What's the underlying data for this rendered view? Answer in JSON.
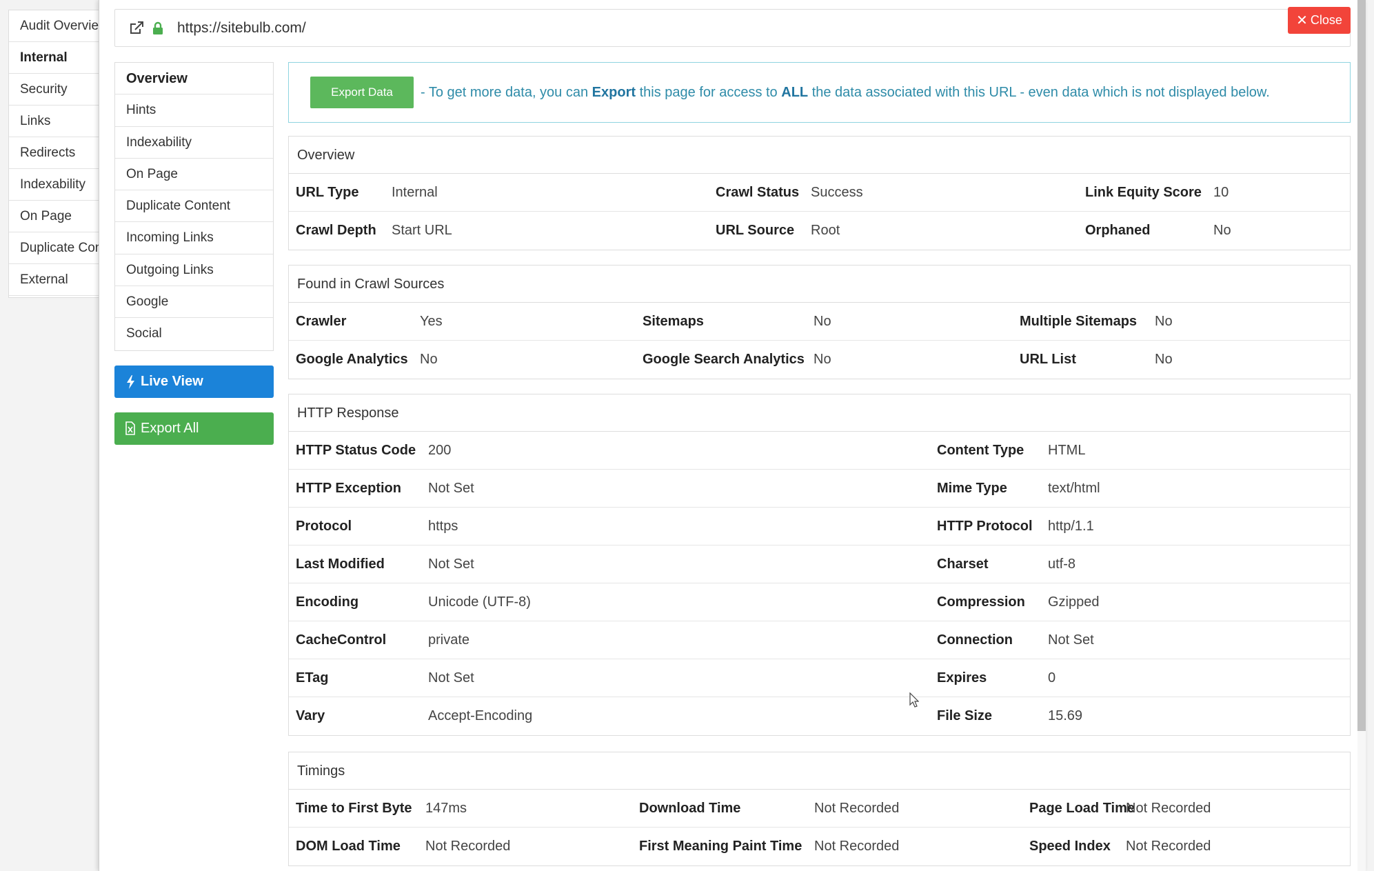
{
  "audit_nav": {
    "items": [
      "Audit Overview",
      "Internal",
      "Security",
      "Links",
      "Redirects",
      "Indexability",
      "On Page",
      "Duplicate Content",
      "External"
    ],
    "active": "Internal"
  },
  "url_bar": {
    "url": "https://sitebulb.com/"
  },
  "close_button": {
    "label": "Close"
  },
  "side_menu": {
    "items": [
      "Overview",
      "Hints",
      "Indexability",
      "On Page",
      "Duplicate Content",
      "Incoming Links",
      "Outgoing Links",
      "Google",
      "Social"
    ],
    "active": "Overview"
  },
  "buttons": {
    "live_view": "Live View",
    "export_all": "Export All"
  },
  "alert": {
    "button": "Export Data",
    "msg_1": "- To get more data, you can ",
    "msg_bold_1": "Export",
    "msg_2": " this page for access to ",
    "msg_bold_2": "ALL",
    "msg_3": " the data associated with this URL - even data which is not displayed below."
  },
  "overview": {
    "title": "Overview",
    "rows": [
      [
        [
          "URL Type",
          "Internal"
        ],
        [
          "Crawl Status",
          "Success"
        ],
        [
          "Link Equity Score",
          "10"
        ]
      ],
      [
        [
          "Crawl Depth",
          "Start URL"
        ],
        [
          "URL Source",
          "Root"
        ],
        [
          "Orphaned",
          "No"
        ]
      ]
    ]
  },
  "crawl_sources": {
    "title": "Found in Crawl Sources",
    "rows": [
      [
        [
          "Crawler",
          "Yes"
        ],
        [
          "Sitemaps",
          "No"
        ],
        [
          "Multiple Sitemaps",
          "No"
        ]
      ],
      [
        [
          "Google Analytics",
          "No"
        ],
        [
          "Google Search Analytics",
          "No"
        ],
        [
          "URL List",
          "No"
        ]
      ]
    ]
  },
  "http_response": {
    "title": "HTTP Response",
    "rows": [
      [
        [
          "HTTP Status Code",
          "200"
        ],
        [
          "Content Type",
          "HTML"
        ]
      ],
      [
        [
          "HTTP Exception",
          "Not Set"
        ],
        [
          "Mime Type",
          "text/html"
        ]
      ],
      [
        [
          "Protocol",
          "https"
        ],
        [
          "HTTP Protocol",
          "http/1.1"
        ]
      ],
      [
        [
          "Last Modified",
          "Not Set"
        ],
        [
          "Charset",
          "utf-8"
        ]
      ],
      [
        [
          "Encoding",
          "Unicode (UTF-8)"
        ],
        [
          "Compression",
          "Gzipped"
        ]
      ],
      [
        [
          "CacheControl",
          "private"
        ],
        [
          "Connection",
          "Not Set"
        ]
      ],
      [
        [
          "ETag",
          "Not Set"
        ],
        [
          "Expires",
          "0"
        ]
      ],
      [
        [
          "Vary",
          "Accept-Encoding"
        ],
        [
          "File Size",
          "15.69"
        ]
      ]
    ]
  },
  "timings": {
    "title": "Timings",
    "rows": [
      [
        [
          "Time to First Byte",
          "147ms"
        ],
        [
          "Download Time",
          "Not Recorded"
        ],
        [
          "Page Load Time",
          "Not Recorded"
        ]
      ],
      [
        [
          "DOM Load Time",
          "Not Recorded"
        ],
        [
          "First Meaning Paint Time",
          "Not Recorded"
        ],
        [
          "Speed Index",
          "Not Recorded"
        ]
      ]
    ]
  },
  "colors": {
    "close_red": "#f2443a",
    "live_view_blue": "#1b83d9",
    "export_green": "#4bae4f",
    "alert_text": "#2e8ba8"
  }
}
